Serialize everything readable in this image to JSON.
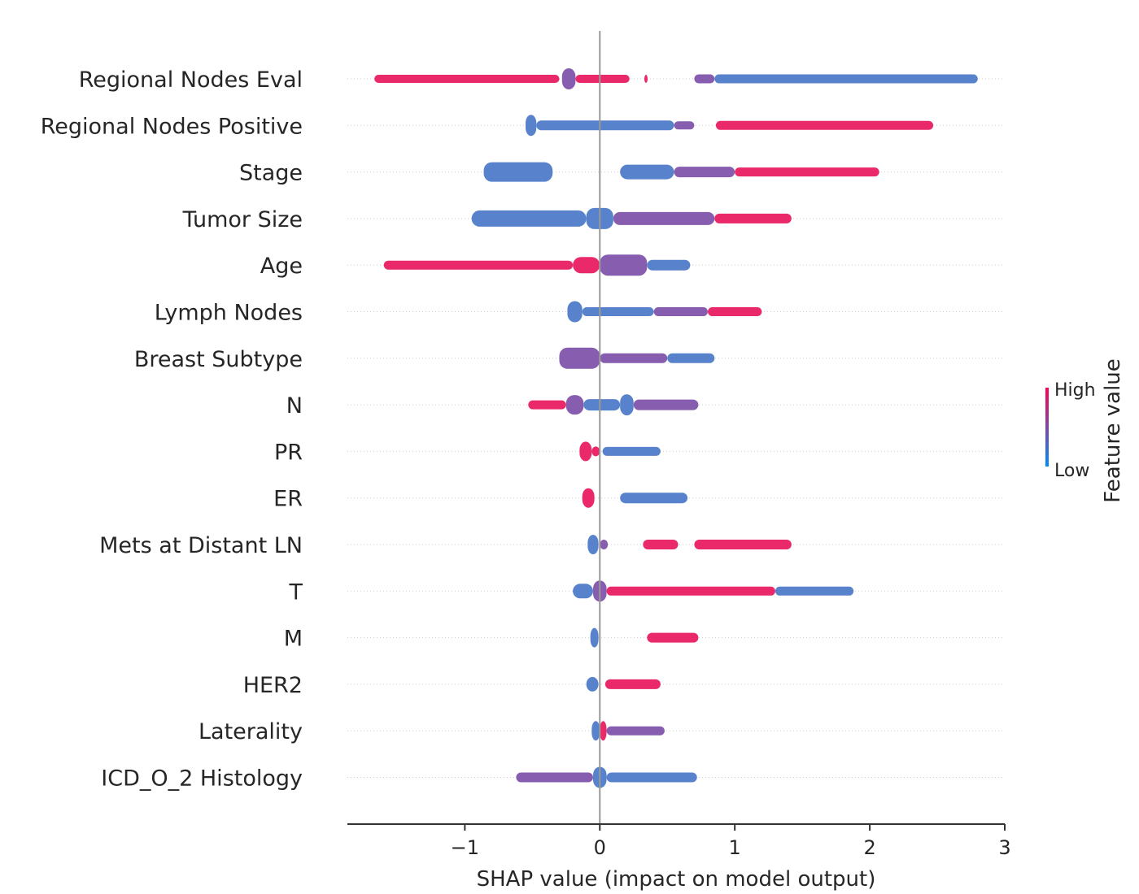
{
  "chart_data": {
    "type": "scatter",
    "subtype": "shap-beeswarm",
    "title": "",
    "xlabel": "SHAP value (impact on model output)",
    "ylabel": "",
    "xlim": [
      -1.87,
      3.0
    ],
    "xticks": [
      -1,
      0,
      1,
      2,
      3
    ],
    "xtick_labels": [
      "−1",
      "0",
      "1",
      "2",
      "3"
    ],
    "zero_line": 0,
    "colorbar": {
      "title": "Feature value",
      "high_label": "High",
      "low_label": "Low",
      "high_color": "#ff0052",
      "low_color": "#008bfb"
    },
    "colors": {
      "high": "#e8175d",
      "mid": "#7d4fa8",
      "low": "#4a78c8"
    },
    "features": [
      {
        "name": "Regional Nodes Eval",
        "segments": [
          {
            "from": -1.67,
            "to": -0.3,
            "value": "high",
            "spread": 0.2
          },
          {
            "from": -0.28,
            "to": -0.18,
            "value": "mid",
            "spread": 1.0
          },
          {
            "from": -0.18,
            "to": 0.22,
            "value": "high",
            "spread": 0.2
          },
          {
            "from": 0.33,
            "to": 0.35,
            "value": "high",
            "spread": 0.2
          },
          {
            "from": 0.7,
            "to": 0.85,
            "value": "mid",
            "spread": 0.25
          },
          {
            "from": 0.85,
            "to": 2.8,
            "value": "low",
            "spread": 0.25
          }
        ]
      },
      {
        "name": "Regional Nodes Positive",
        "segments": [
          {
            "from": -0.55,
            "to": -0.47,
            "value": "low",
            "spread": 1.0
          },
          {
            "from": -0.47,
            "to": 0.55,
            "value": "low",
            "spread": 0.3
          },
          {
            "from": 0.55,
            "to": 0.7,
            "value": "mid",
            "spread": 0.2
          },
          {
            "from": 0.86,
            "to": 2.47,
            "value": "high",
            "spread": 0.25
          }
        ]
      },
      {
        "name": "Stage",
        "segments": [
          {
            "from": -0.86,
            "to": -0.35,
            "value": "low",
            "spread": 0.9
          },
          {
            "from": 0.15,
            "to": 0.55,
            "value": "low",
            "spread": 0.6
          },
          {
            "from": 0.55,
            "to": 1.0,
            "value": "mid",
            "spread": 0.35
          },
          {
            "from": 1.0,
            "to": 2.07,
            "value": "high",
            "spread": 0.25
          }
        ]
      },
      {
        "name": "Tumor Size",
        "segments": [
          {
            "from": -0.95,
            "to": -0.1,
            "value": "low",
            "spread": 0.7
          },
          {
            "from": -0.1,
            "to": 0.1,
            "value": "low",
            "spread": 1.0
          },
          {
            "from": 0.1,
            "to": 0.85,
            "value": "mid",
            "spread": 0.5
          },
          {
            "from": 0.85,
            "to": 1.42,
            "value": "high",
            "spread": 0.3
          }
        ]
      },
      {
        "name": "Age",
        "segments": [
          {
            "from": -1.6,
            "to": -0.2,
            "value": "high",
            "spread": 0.25
          },
          {
            "from": -0.2,
            "to": 0.0,
            "value": "high",
            "spread": 0.7
          },
          {
            "from": 0.0,
            "to": 0.35,
            "value": "mid",
            "spread": 1.0
          },
          {
            "from": 0.35,
            "to": 0.67,
            "value": "low",
            "spread": 0.35
          }
        ]
      },
      {
        "name": "Lymph Nodes",
        "segments": [
          {
            "from": -0.24,
            "to": -0.13,
            "value": "low",
            "spread": 1.0
          },
          {
            "from": -0.13,
            "to": 0.4,
            "value": "low",
            "spread": 0.25
          },
          {
            "from": 0.4,
            "to": 0.8,
            "value": "mid",
            "spread": 0.25
          },
          {
            "from": 0.8,
            "to": 1.2,
            "value": "high",
            "spread": 0.25
          }
        ]
      },
      {
        "name": "Breast Subtype",
        "segments": [
          {
            "from": -0.3,
            "to": 0.0,
            "value": "mid",
            "spread": 1.0
          },
          {
            "from": 0.0,
            "to": 0.5,
            "value": "mid",
            "spread": 0.3
          },
          {
            "from": 0.5,
            "to": 0.85,
            "value": "low",
            "spread": 0.3
          }
        ]
      },
      {
        "name": "N",
        "segments": [
          {
            "from": -0.53,
            "to": -0.25,
            "value": "high",
            "spread": 0.25
          },
          {
            "from": -0.25,
            "to": -0.12,
            "value": "mid",
            "spread": 0.9
          },
          {
            "from": -0.12,
            "to": 0.15,
            "value": "low",
            "spread": 0.4
          },
          {
            "from": 0.15,
            "to": 0.25,
            "value": "low",
            "spread": 1.0
          },
          {
            "from": 0.25,
            "to": 0.73,
            "value": "mid",
            "spread": 0.35
          }
        ]
      },
      {
        "name": "PR",
        "segments": [
          {
            "from": -0.15,
            "to": -0.06,
            "value": "high",
            "spread": 0.9
          },
          {
            "from": -0.06,
            "to": 0.0,
            "value": "high",
            "spread": 0.3
          },
          {
            "from": 0.02,
            "to": 0.45,
            "value": "low",
            "spread": 0.25
          }
        ]
      },
      {
        "name": "ER",
        "segments": [
          {
            "from": -0.13,
            "to": -0.04,
            "value": "high",
            "spread": 0.9
          },
          {
            "from": 0.15,
            "to": 0.65,
            "value": "low",
            "spread": 0.35
          }
        ]
      },
      {
        "name": "Mets at Distant LN",
        "segments": [
          {
            "from": -0.09,
            "to": -0.01,
            "value": "low",
            "spread": 0.9
          },
          {
            "from": 0.0,
            "to": 0.06,
            "value": "mid",
            "spread": 0.3
          },
          {
            "from": 0.32,
            "to": 0.58,
            "value": "high",
            "spread": 0.3
          },
          {
            "from": 0.7,
            "to": 1.42,
            "value": "high",
            "spread": 0.3
          }
        ]
      },
      {
        "name": "T",
        "segments": [
          {
            "from": -0.2,
            "to": -0.05,
            "value": "low",
            "spread": 0.6
          },
          {
            "from": -0.05,
            "to": 0.05,
            "value": "mid",
            "spread": 1.0
          },
          {
            "from": 0.05,
            "to": 1.3,
            "value": "high",
            "spread": 0.25
          },
          {
            "from": 1.3,
            "to": 1.88,
            "value": "low",
            "spread": 0.25
          }
        ]
      },
      {
        "name": "M",
        "segments": [
          {
            "from": -0.07,
            "to": -0.01,
            "value": "low",
            "spread": 0.9
          },
          {
            "from": 0.35,
            "to": 0.73,
            "value": "high",
            "spread": 0.3
          }
        ]
      },
      {
        "name": "HER2",
        "segments": [
          {
            "from": -0.1,
            "to": -0.01,
            "value": "low",
            "spread": 0.6
          },
          {
            "from": 0.04,
            "to": 0.45,
            "value": "high",
            "spread": 0.3
          }
        ]
      },
      {
        "name": "Laterality",
        "segments": [
          {
            "from": -0.06,
            "to": 0.0,
            "value": "low",
            "spread": 0.9
          },
          {
            "from": 0.0,
            "to": 0.05,
            "value": "high",
            "spread": 0.9
          },
          {
            "from": 0.05,
            "to": 0.48,
            "value": "mid",
            "spread": 0.25
          }
        ]
      },
      {
        "name": "ICD_O_2 Histology",
        "segments": [
          {
            "from": -0.62,
            "to": -0.05,
            "value": "mid",
            "spread": 0.3
          },
          {
            "from": -0.05,
            "to": 0.05,
            "value": "low",
            "spread": 1.0
          },
          {
            "from": 0.05,
            "to": 0.72,
            "value": "low",
            "spread": 0.3
          }
        ]
      }
    ]
  }
}
